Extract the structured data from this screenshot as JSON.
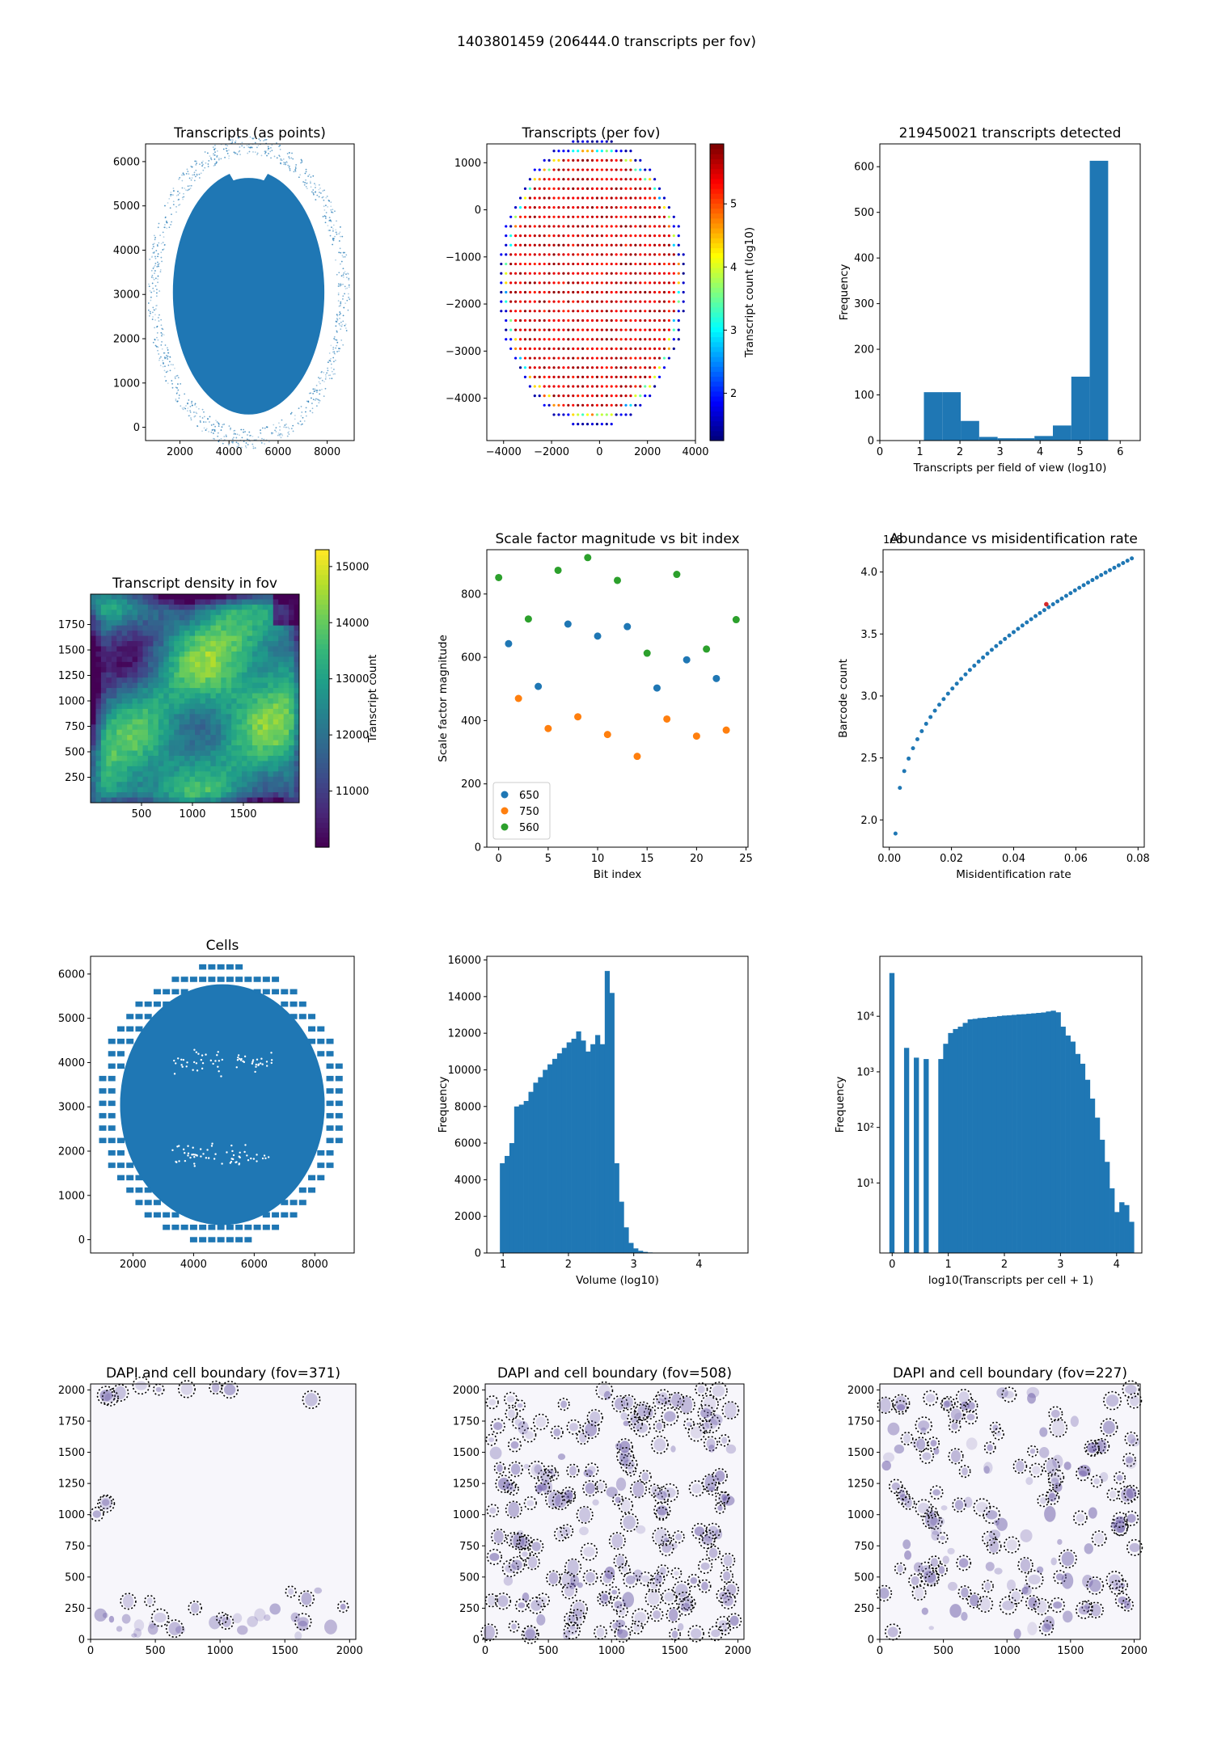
{
  "suptitle": "1403801459 (206444.0 transcripts per fov)",
  "colors": {
    "blue": "#1f77b4",
    "orange": "#ff7f0e",
    "green": "#2ca02c",
    "red": "#d62728",
    "nuclei": "#5b4a9e"
  },
  "chart_data": [
    {
      "id": "p1",
      "type": "scatter",
      "title": "Transcripts (as points)",
      "xlabel": "",
      "ylabel": "",
      "xlim": [
        600,
        9100
      ],
      "ylim": [
        -300,
        6400
      ],
      "xticks": [
        2000,
        4000,
        6000,
        8000
      ],
      "yticks": [
        0,
        1000,
        2000,
        3000,
        4000,
        5000,
        6000
      ],
      "shape": {
        "center": [
          4800,
          3050
        ],
        "radius_x": 3550,
        "radius_y": 2950,
        "note_top_notch_x": 4800
      }
    },
    {
      "id": "p2",
      "type": "scatter",
      "title": "Transcripts (per fov)",
      "xlabel": "",
      "ylabel": "",
      "xlim": [
        -4700,
        4000
      ],
      "ylim": [
        -4900,
        1400
      ],
      "xticks": [
        -4000,
        -2000,
        0,
        2000,
        4000
      ],
      "yticks": [
        1000,
        0,
        -1000,
        -2000,
        -3000,
        -4000
      ],
      "grid": {
        "x_start": -4100,
        "x_end": 3500,
        "y_start": -4550,
        "y_end": 1450,
        "step": 200
      },
      "colorbar": {
        "label": "Transcript count (log10)",
        "range": [
          1.25,
          5.95
        ],
        "ticks": [
          2,
          3,
          4,
          5
        ],
        "cmap": "jet"
      }
    },
    {
      "id": "p3",
      "type": "bar",
      "title": "219450021 transcripts detected",
      "xlabel": "Transcripts per field of view (log10)",
      "ylabel": "Frequency",
      "xlim": [
        0,
        6.5
      ],
      "ylim": [
        0,
        650
      ],
      "xticks": [
        0,
        1,
        2,
        3,
        4,
        5,
        6
      ],
      "yticks": [
        0,
        100,
        200,
        300,
        400,
        500,
        600
      ],
      "bin_edges": [
        1.1,
        1.56,
        2.02,
        2.48,
        2.94,
        3.4,
        3.86,
        4.32,
        4.78,
        5.24,
        5.7
      ],
      "values": [
        106,
        106,
        43,
        8,
        5,
        5,
        10,
        33,
        140,
        613
      ]
    },
    {
      "id": "p4",
      "type": "heatmap",
      "title": "Transcript density in fov",
      "xlabel": "",
      "ylabel": "",
      "xlim": [
        0,
        2048
      ],
      "ylim": [
        0,
        2048
      ],
      "xticks": [
        500,
        1000,
        1500
      ],
      "yticks": [
        250,
        500,
        750,
        1000,
        1250,
        1500,
        1750
      ],
      "colorbar": {
        "label": "Transcript count",
        "range": [
          10000,
          15300
        ],
        "ticks": [
          11000,
          12000,
          13000,
          14000,
          15000
        ],
        "cmap": "viridis"
      }
    },
    {
      "id": "p5",
      "type": "scatter",
      "title": "Scale factor magnitude vs bit index",
      "xlabel": "Bit index",
      "ylabel": "Scale factor magnitude",
      "xlim": [
        -1.2,
        25.2
      ],
      "ylim": [
        0,
        940
      ],
      "xticks": [
        0,
        5,
        10,
        15,
        20,
        25
      ],
      "yticks": [
        0,
        200,
        400,
        600,
        800
      ],
      "legend": "lower left",
      "series": [
        {
          "name": "650",
          "color": "#1f77b4",
          "x": [
            1,
            4,
            7,
            10,
            13,
            16,
            19,
            22
          ],
          "y": [
            643,
            508,
            705,
            667,
            697,
            503,
            592,
            533
          ]
        },
        {
          "name": "750",
          "color": "#ff7f0e",
          "x": [
            2,
            5,
            8,
            11,
            14,
            17,
            20,
            23
          ],
          "y": [
            470,
            375,
            412,
            356,
            287,
            405,
            351,
            370
          ]
        },
        {
          "name": "560",
          "color": "#2ca02c",
          "x": [
            0,
            3,
            6,
            9,
            12,
            15,
            18,
            21,
            24
          ],
          "y": [
            852,
            721,
            875,
            915,
            843,
            613,
            862,
            626,
            719
          ]
        }
      ]
    },
    {
      "id": "p6",
      "type": "scatter",
      "title": "Abundance vs misidentification rate",
      "xlabel": "Misidentification rate",
      "ylabel": "Barcode count",
      "offset_label": "1e8",
      "xlim": [
        -0.002,
        0.082
      ],
      "ylim": [
        1.78,
        4.18
      ],
      "xticks": [
        0.0,
        0.02,
        0.04,
        0.06,
        0.08
      ],
      "yticks": [
        2.0,
        2.5,
        3.0,
        3.5,
        4.0
      ],
      "xtick_labels": [
        "0.00",
        "0.02",
        "0.04",
        "0.06",
        "0.08"
      ],
      "ytick_labels": [
        "2.0",
        "2.5",
        "3.0",
        "3.5",
        "4.0"
      ],
      "curve": {
        "x_start": 0.002,
        "x_end": 0.078,
        "y_start": 1.89,
        "y_end": 4.11,
        "count": 55
      },
      "highlight": {
        "x": 0.0505,
        "y": 3.74,
        "color": "#d62728"
      }
    },
    {
      "id": "p7",
      "type": "scatter",
      "title": "Cells",
      "xlabel": "",
      "ylabel": "",
      "xlim": [
        600,
        9300
      ],
      "ylim": [
        -300,
        6400
      ],
      "xticks": [
        2000,
        4000,
        6000,
        8000
      ],
      "yticks": [
        0,
        1000,
        2000,
        3000,
        4000,
        5000,
        6000
      ]
    },
    {
      "id": "p8",
      "type": "bar",
      "title": "",
      "xlabel": "Volume (log10)",
      "ylabel": "Frequency",
      "xlim": [
        0.75,
        4.75
      ],
      "ylim": [
        0,
        16200
      ],
      "xticks": [
        1,
        2,
        3,
        4
      ],
      "yticks": [
        0,
        2000,
        4000,
        6000,
        8000,
        10000,
        12000,
        14000,
        16000
      ],
      "bin_start": 0.95,
      "bin_width": 0.073,
      "values": [
        4900,
        5300,
        6000,
        8000,
        8100,
        8300,
        8800,
        9300,
        9600,
        10000,
        10300,
        10600,
        10900,
        11200,
        11500,
        11700,
        12100,
        11600,
        11000,
        11400,
        11900,
        11400,
        15400,
        14200,
        4900,
        2800,
        1400,
        550,
        250,
        120,
        60,
        30,
        15,
        8,
        4,
        2,
        1,
        1
      ]
    },
    {
      "id": "p9",
      "type": "bar",
      "title": "",
      "xlabel": "log10(Transcripts per cell + 1)",
      "ylabel": "Frequency",
      "log_y": true,
      "xlim": [
        -0.22,
        4.45
      ],
      "ylim": [
        0.55,
        120000
      ],
      "xticks": [
        0,
        1,
        2,
        3,
        4
      ],
      "yticks": [
        10,
        100,
        1000,
        10000
      ],
      "ytick_labels": [
        "10¹",
        "10²",
        "10³",
        "10⁴"
      ],
      "bin_start": -0.05,
      "bin_width": 0.0872,
      "values": [
        60000,
        0.5,
        0.5,
        2700,
        0.5,
        1800,
        0.5,
        1700,
        0.5,
        0.5,
        1700,
        3200,
        5000,
        5900,
        6500,
        7600,
        8800,
        9000,
        9300,
        9400,
        9700,
        9800,
        10100,
        10300,
        10400,
        10600,
        10800,
        10900,
        11100,
        11300,
        11500,
        11700,
        12200,
        12600,
        11800,
        6500,
        4500,
        3500,
        2100,
        1400,
        720,
        330,
        150,
        60,
        24,
        8,
        3,
        4.5,
        4,
        2
      ]
    },
    {
      "id": "p10",
      "type": "heatmap",
      "title": "DAPI and cell boundary (fov=371)",
      "xlim": [
        0,
        2048
      ],
      "ylim": [
        0,
        2048
      ],
      "xticks": [
        0,
        500,
        1000,
        1500,
        2000
      ],
      "yticks": [
        0,
        250,
        500,
        750,
        1000,
        1250,
        1500,
        1750,
        2000
      ]
    },
    {
      "id": "p11",
      "type": "heatmap",
      "title": "DAPI and cell boundary (fov=508)",
      "xlim": [
        0,
        2048
      ],
      "ylim": [
        0,
        2048
      ],
      "xticks": [
        0,
        500,
        1000,
        1500,
        2000
      ],
      "yticks": [
        0,
        250,
        500,
        750,
        1000,
        1250,
        1500,
        1750,
        2000
      ]
    },
    {
      "id": "p12",
      "type": "heatmap",
      "title": "DAPI and cell boundary (fov=227)",
      "xlim": [
        0,
        2048
      ],
      "ylim": [
        0,
        2048
      ],
      "xticks": [
        0,
        500,
        1000,
        1500,
        2000
      ],
      "yticks": [
        0,
        250,
        500,
        750,
        1000,
        1250,
        1500,
        1750,
        2000
      ]
    }
  ]
}
